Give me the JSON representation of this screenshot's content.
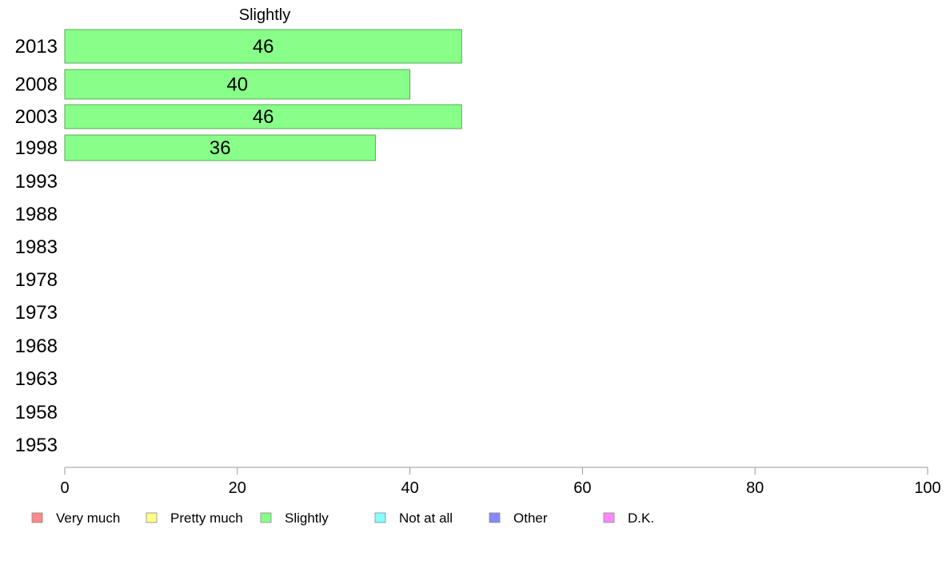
{
  "chart_data": {
    "type": "bar",
    "orientation": "horizontal",
    "title": "Slightly",
    "categories": [
      "2013",
      "2008",
      "2003",
      "1998",
      "1993",
      "1988",
      "1983",
      "1978",
      "1973",
      "1968",
      "1963",
      "1958",
      "1953"
    ],
    "series": [
      {
        "name": "Slightly",
        "color": "#88ff88",
        "values": [
          46,
          40,
          46,
          36,
          null,
          null,
          null,
          null,
          null,
          null,
          null,
          null,
          null
        ]
      }
    ],
    "xlim": [
      0,
      100
    ],
    "xticks": [
      "0",
      "20",
      "40",
      "60",
      "80",
      "100"
    ],
    "grid": false,
    "legend_position": "bottom",
    "legend": [
      {
        "label": "Very much",
        "color": "#ff8888"
      },
      {
        "label": "Pretty much",
        "color": "#ffff88"
      },
      {
        "label": "Slightly",
        "color": "#88ff88"
      },
      {
        "label": "Not at all",
        "color": "#88ffff"
      },
      {
        "label": "Other",
        "color": "#8888ff"
      },
      {
        "label": "D.K.",
        "color": "#ff88ff"
      }
    ]
  }
}
